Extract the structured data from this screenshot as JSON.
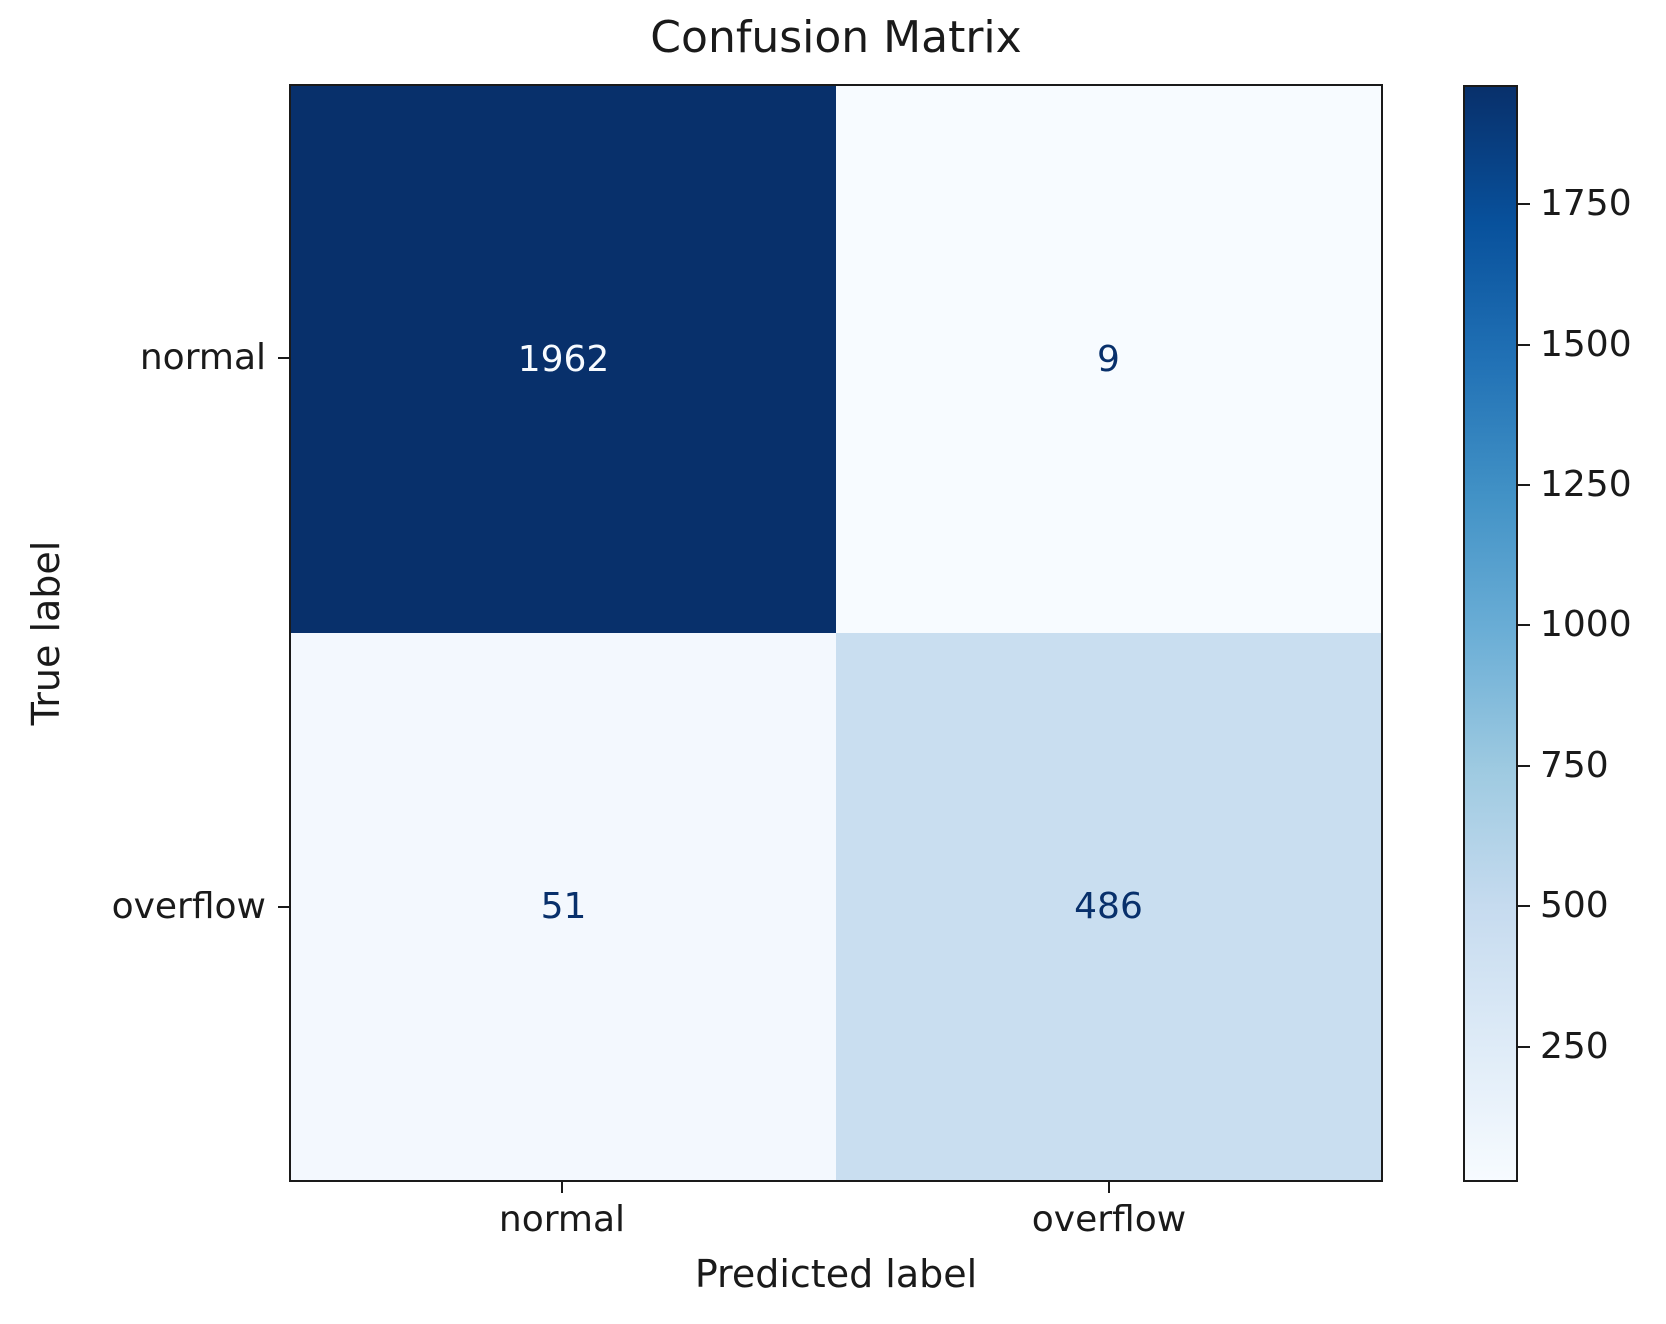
{
  "chart_data": {
    "type": "heatmap",
    "title": "Confusion Matrix",
    "xlabel": "Predicted label",
    "ylabel": "True label",
    "x_tick_labels": [
      "normal",
      "overflow"
    ],
    "y_tick_labels": [
      "normal",
      "overflow"
    ],
    "matrix": [
      [
        1962,
        9
      ],
      [
        51,
        486
      ]
    ],
    "colormap": "Blues",
    "cell_colors": [
      [
        "#08306b",
        "#f7fbff"
      ],
      [
        "#f3f8fe",
        "#c9def0"
      ]
    ],
    "cell_text_colors": [
      [
        "#f7fbff",
        "#08306b"
      ],
      [
        "#08306b",
        "#08306b"
      ]
    ],
    "colorbar": {
      "vmin": 9,
      "vmax": 1962,
      "ticks": [
        250,
        500,
        750,
        1000,
        1250,
        1500,
        1750
      ],
      "gradient_stops_top_to_bottom": [
        "#08306b",
        "#08519c",
        "#2171b5",
        "#4292c6",
        "#6baed6",
        "#9ecae1",
        "#c6dbef",
        "#deebf7",
        "#f7fbff"
      ]
    },
    "colors": {
      "axes_edge": "#1a1a1a",
      "text": "#1a1a1a",
      "background": "#ffffff"
    },
    "legend_position": "right-colorbar",
    "grid": false
  }
}
